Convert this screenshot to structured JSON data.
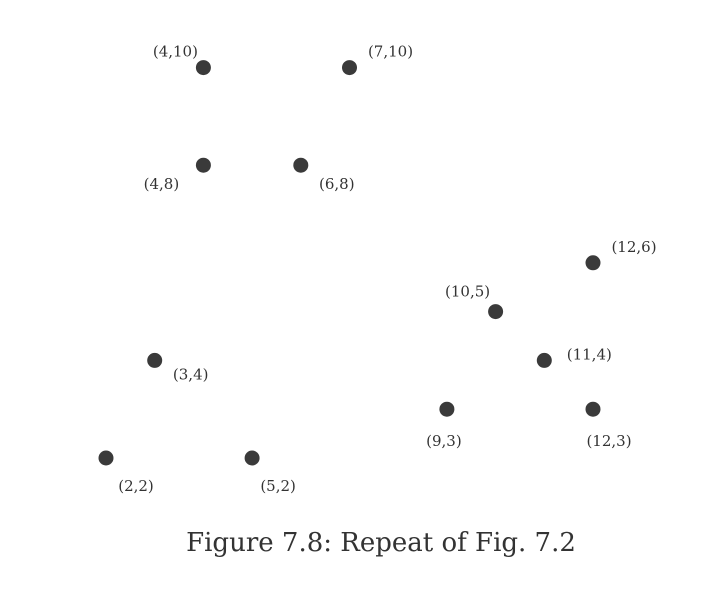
{
  "caption": "Figure 7.8: Repeat of Fig. 7.2",
  "colors": {
    "point": "#3a3a3a",
    "label": "#333333"
  },
  "chart_data": {
    "type": "scatter",
    "title": "",
    "xlabel": "",
    "ylabel": "",
    "grid": false,
    "axes_visible": false,
    "xlim": [
      2,
      12
    ],
    "ylim": [
      2,
      10
    ],
    "points": [
      {
        "x": 4,
        "y": 10,
        "label": "(4,10)"
      },
      {
        "x": 7,
        "y": 10,
        "label": "(7,10)"
      },
      {
        "x": 4,
        "y": 8,
        "label": "(4,8)"
      },
      {
        "x": 6,
        "y": 8,
        "label": "(6,8)"
      },
      {
        "x": 12,
        "y": 6,
        "label": "(12,6)"
      },
      {
        "x": 10,
        "y": 5,
        "label": "(10,5)"
      },
      {
        "x": 11,
        "y": 4,
        "label": "(11,4)"
      },
      {
        "x": 3,
        "y": 4,
        "label": "(3,4)"
      },
      {
        "x": 9,
        "y": 3,
        "label": "(9,3)"
      },
      {
        "x": 12,
        "y": 3,
        "label": "(12,3)"
      },
      {
        "x": 2,
        "y": 2,
        "label": "(2,2)"
      },
      {
        "x": 5,
        "y": 2,
        "label": "(5,2)"
      }
    ]
  }
}
